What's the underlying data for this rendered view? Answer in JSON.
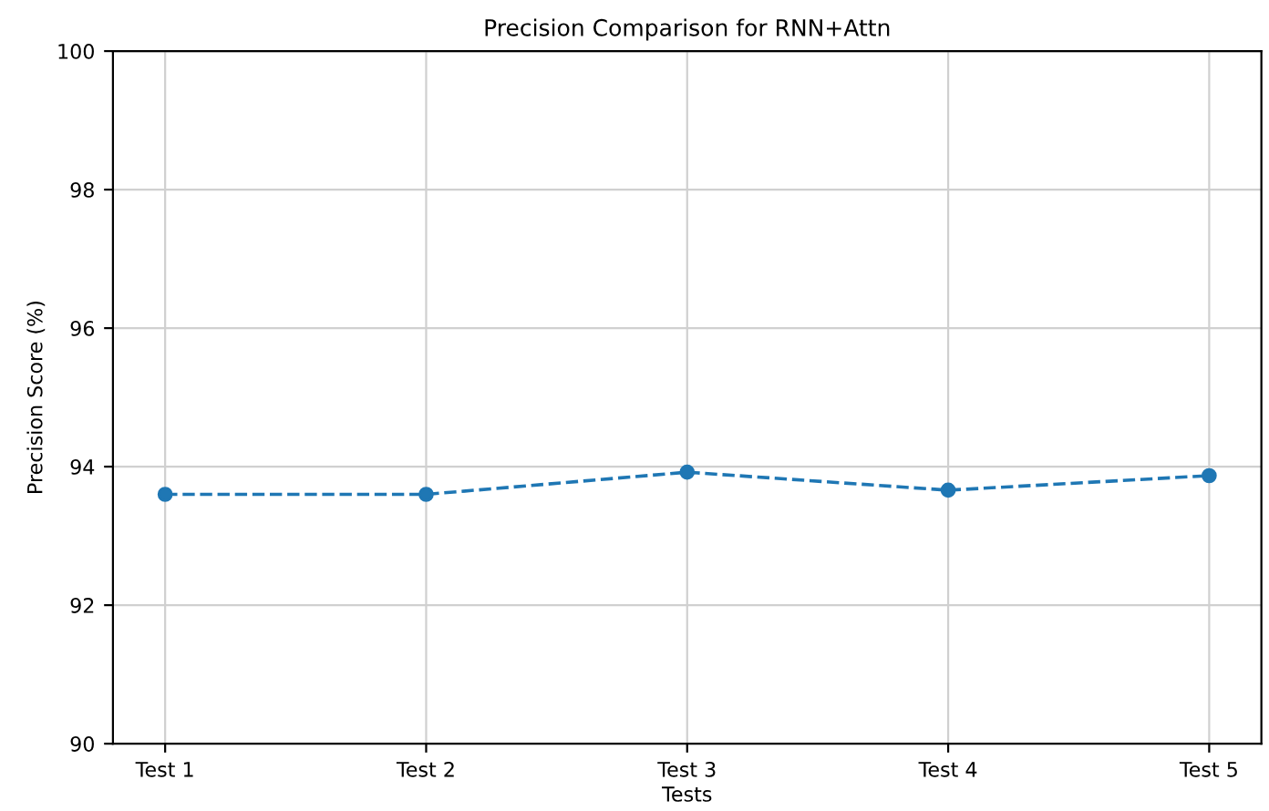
{
  "chart_data": {
    "type": "line",
    "title": "Precision Comparison for RNN+Attn",
    "xlabel": "Tests",
    "ylabel": "Precision Score (%)",
    "categories": [
      "Test 1",
      "Test 2",
      "Test 3",
      "Test 4",
      "Test 5"
    ],
    "series": [
      {
        "color": "#1f77b4",
        "values": [
          93.6,
          93.6,
          93.92,
          93.66,
          93.87
        ]
      }
    ],
    "ylim": [
      90,
      100
    ],
    "yticks": [
      90,
      92,
      94,
      96,
      98,
      100
    ],
    "grid": true,
    "marker": "circle",
    "line_style": "dashed"
  }
}
